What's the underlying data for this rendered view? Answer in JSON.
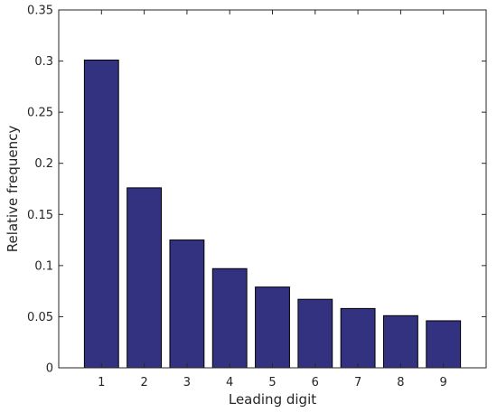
{
  "chart_data": {
    "type": "bar",
    "categories": [
      "1",
      "2",
      "3",
      "4",
      "5",
      "6",
      "7",
      "8",
      "9"
    ],
    "values": [
      0.301,
      0.176,
      0.125,
      0.097,
      0.079,
      0.067,
      0.058,
      0.051,
      0.046
    ],
    "xlabel": "Leading digit",
    "ylabel": "Relative frequency",
    "ylim": [
      0,
      0.35
    ],
    "yticks": [
      0,
      0.05,
      0.1,
      0.15,
      0.2,
      0.25,
      0.3,
      0.35
    ],
    "ytick_labels": [
      "0",
      "0.05",
      "0.1",
      "0.15",
      "0.2",
      "0.25",
      "0.3",
      "0.35"
    ],
    "grid": false,
    "colors": {
      "bar_fill": "#323280",
      "bar_edge": "#000000",
      "axis": "#262626"
    }
  }
}
